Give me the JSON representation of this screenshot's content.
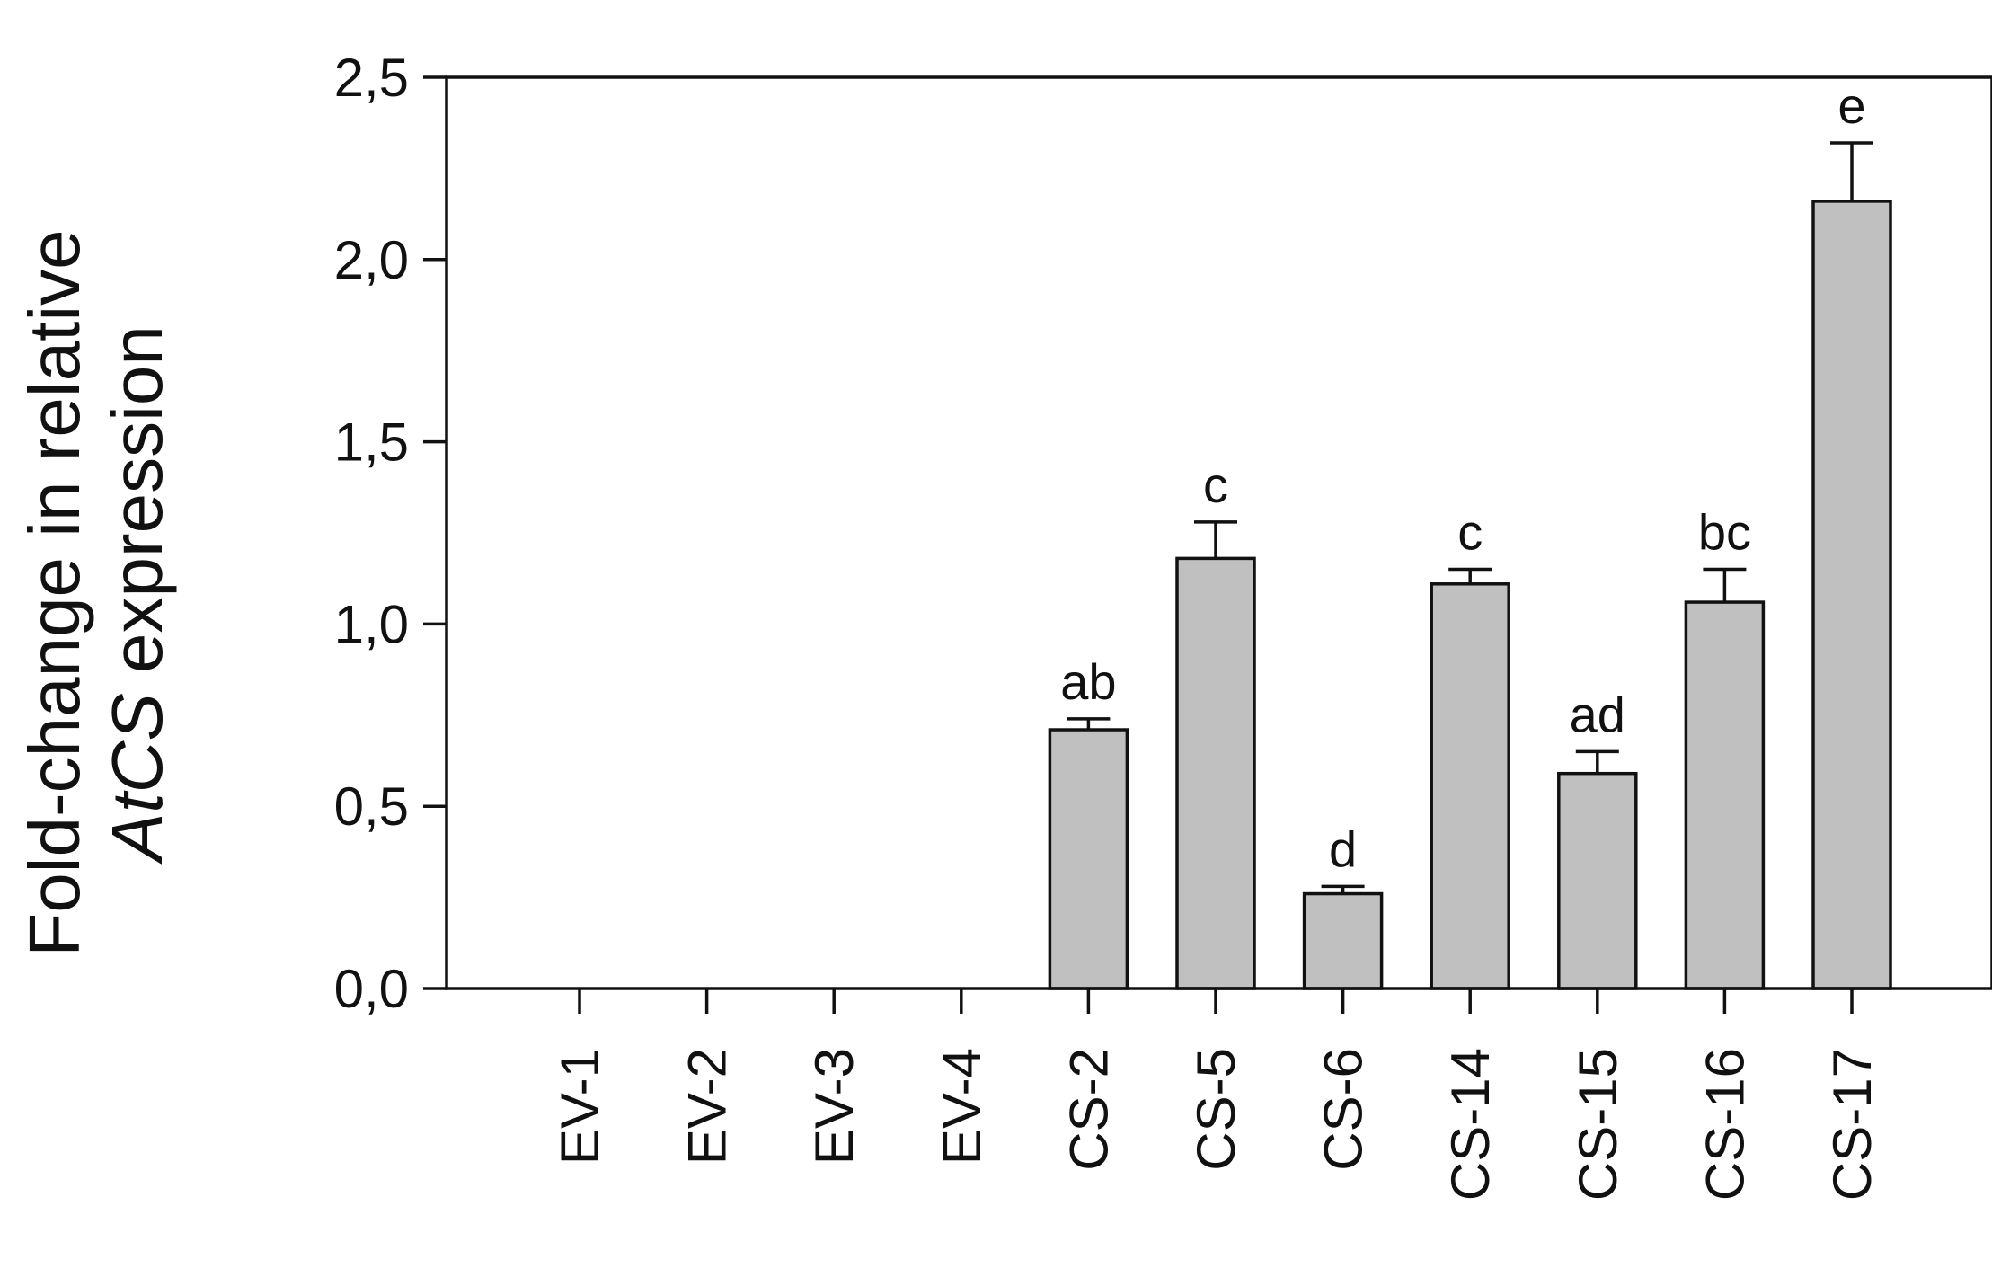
{
  "chart_data": {
    "type": "bar",
    "ylabel_line1": "Fold-change in relative",
    "ylabel_line2_italic": "AtCS",
    "ylabel_line2_rest": " expression",
    "ylim": [
      0,
      2.5
    ],
    "yticks": [
      0,
      0.5,
      1.0,
      1.5,
      2.0,
      2.5
    ],
    "ytick_labels": [
      "0,0",
      "0,5",
      "1,0",
      "1,5",
      "2,0",
      "2,5"
    ],
    "categories": [
      "EV-1",
      "EV-2",
      "EV-3",
      "EV-4",
      "CS-2",
      "CS-5",
      "CS-6",
      "CS-14",
      "CS-15",
      "CS-16",
      "CS-17"
    ],
    "values": [
      0,
      0,
      0,
      0,
      0.71,
      1.18,
      0.26,
      1.11,
      0.59,
      1.06,
      2.16
    ],
    "errors": [
      0,
      0,
      0,
      0,
      0.03,
      0.1,
      0.02,
      0.04,
      0.06,
      0.09,
      0.16
    ],
    "significance": [
      "",
      "",
      "",
      "",
      "ab",
      "c",
      "d",
      "c",
      "ad",
      "bc",
      "e"
    ],
    "grid": false,
    "colors": {
      "bar_fill": "#c0c0c0",
      "bar_stroke": "#111111"
    }
  }
}
